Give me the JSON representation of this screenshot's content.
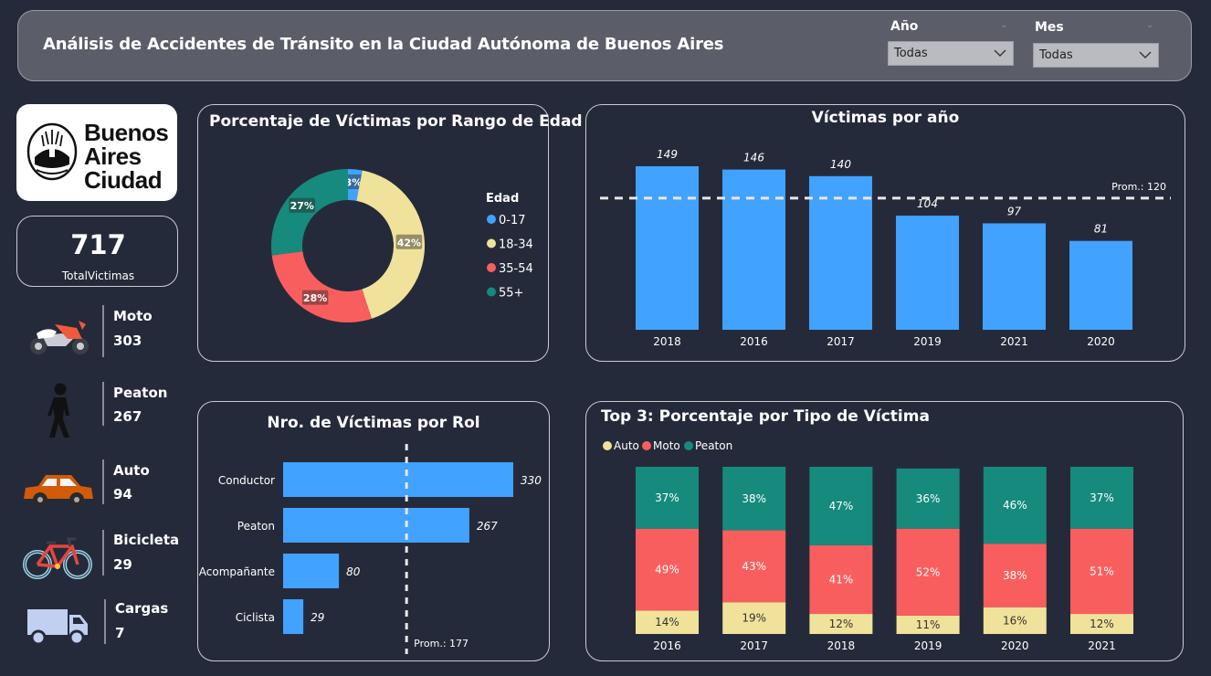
{
  "header": {
    "title": "Análisis de Accidentes de Tránsito en la Ciudad Autónoma de Buenos Aires",
    "filters": [
      {
        "label": "Año",
        "value": "Todas"
      },
      {
        "label": "Mes",
        "value": "Todas"
      }
    ]
  },
  "logo": {
    "line1": "Buenos",
    "line2": "Aires",
    "line3": "Ciudad"
  },
  "kpi": {
    "value": "717",
    "label": "TotalVictimas"
  },
  "vehicles": [
    {
      "name": "Moto",
      "value": "303",
      "icon": "motorcycle-icon"
    },
    {
      "name": "Peaton",
      "value": "267",
      "icon": "pedestrian-icon"
    },
    {
      "name": "Auto",
      "value": "94",
      "icon": "car-icon"
    },
    {
      "name": "Bicicleta",
      "value": "29",
      "icon": "bicycle-icon"
    },
    {
      "name": "Cargas",
      "value": "7",
      "icon": "truck-icon"
    }
  ],
  "colors": {
    "blue": "#41a2ff",
    "yellow": "#f0e29a",
    "red": "#f95e5e",
    "teal": "#168a7d"
  },
  "chart_data": [
    {
      "type": "pie",
      "variant": "donut",
      "title": "Porcentaje de Víctimas por Rango de Edad",
      "legend_title": "Edad",
      "legend_position": "right",
      "categories": [
        "0-17",
        "18-34",
        "35-54",
        "55+"
      ],
      "values": [
        3,
        42,
        28,
        27
      ],
      "labels": [
        "3%",
        "42%",
        "28%",
        "27%"
      ]
    },
    {
      "type": "bar",
      "title": "Víctimas por año",
      "categories": [
        "2018",
        "2016",
        "2017",
        "2019",
        "2021",
        "2020"
      ],
      "values": [
        149,
        146,
        140,
        104,
        97,
        81
      ],
      "average": {
        "value": 120,
        "label": "Prom.: 120"
      },
      "ylim": [
        0,
        150
      ]
    },
    {
      "type": "bar",
      "orientation": "horizontal",
      "title": "Nro. de Víctimas por Rol",
      "categories": [
        "Conductor",
        "Peaton",
        "Acompañante",
        "Ciclista"
      ],
      "values": [
        330,
        267,
        80,
        29
      ],
      "average": {
        "value": 177,
        "label": "Prom.: 177"
      },
      "xlim": [
        0,
        330
      ]
    },
    {
      "type": "bar",
      "stacked": "percent",
      "title": "Top 3: Porcentaje por Tipo de Víctima",
      "legend_position": "top-left",
      "categories": [
        "2016",
        "2017",
        "2018",
        "2019",
        "2020",
        "2021"
      ],
      "series": [
        {
          "name": "Auto",
          "values": [
            14,
            19,
            12,
            11,
            16,
            12
          ]
        },
        {
          "name": "Moto",
          "values": [
            49,
            43,
            41,
            52,
            38,
            51
          ]
        },
        {
          "name": "Peaton",
          "values": [
            37,
            38,
            47,
            36,
            46,
            37
          ]
        }
      ]
    }
  ]
}
